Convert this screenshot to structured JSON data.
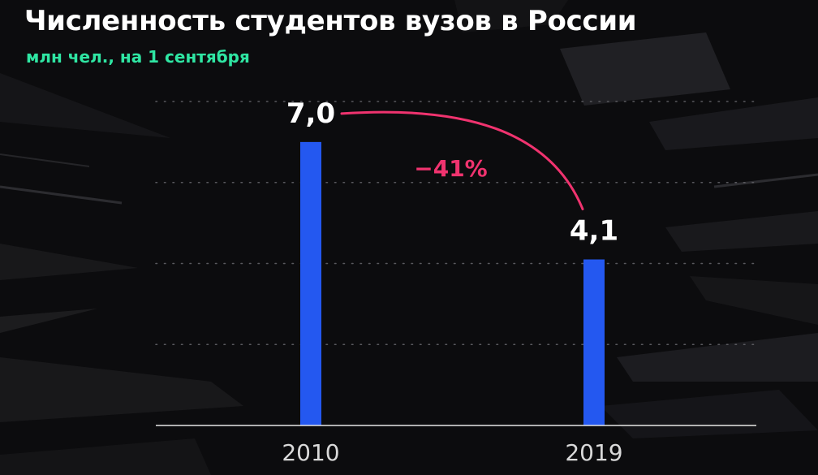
{
  "title": "Численность студентов вузов в России",
  "subtitle": "млн чел., на 1 сентября",
  "colors": {
    "subtitle": "#2fe6a3",
    "bar": "#2458f0",
    "arc": "#f0336f",
    "text": "#ffffff",
    "axis_labels": "#d9d9d9",
    "background": "#0c0c0e"
  },
  "chart_data": {
    "type": "bar",
    "categories": [
      "2010",
      "2019"
    ],
    "values": [
      7.0,
      4.1
    ],
    "data_labels": [
      "7,0",
      "4,1"
    ],
    "change_label": "−41%",
    "ylim": [
      0,
      8
    ],
    "grid": true,
    "legend": "none"
  }
}
